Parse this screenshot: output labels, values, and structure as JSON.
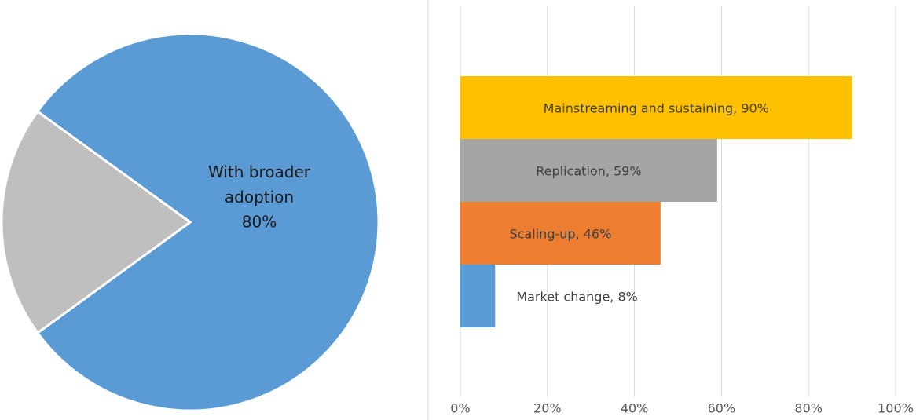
{
  "chart_data": [
    {
      "type": "pie",
      "categories": [
        "With broader adoption",
        null
      ],
      "values": [
        80,
        20
      ],
      "value_labels": [
        "80%",
        null
      ],
      "colors": [
        "#5b9bd5",
        "#bfbfbf"
      ]
    },
    {
      "type": "hbar",
      "values": [
        8,
        46,
        59,
        90
      ],
      "value_labels": [
        "Market change, 8%",
        "Scaling-up, 46%",
        "Replication, 59%",
        "Mainstreaming and sustaining,  90%"
      ],
      "colors": [
        "#5b9bd5",
        "#ed7d31",
        "#a5a5a5",
        "#ffc000"
      ],
      "xlim": [
        0,
        100
      ],
      "xticks": [
        {
          "value": 0,
          "label": "0%"
        },
        {
          "value": 20,
          "label": "20%"
        },
        {
          "value": 40,
          "label": "40%"
        },
        {
          "value": 60,
          "label": "60%"
        },
        {
          "value": 80,
          "label": "80%"
        },
        {
          "value": 100,
          "label": "100%"
        }
      ],
      "grid": true
    }
  ]
}
